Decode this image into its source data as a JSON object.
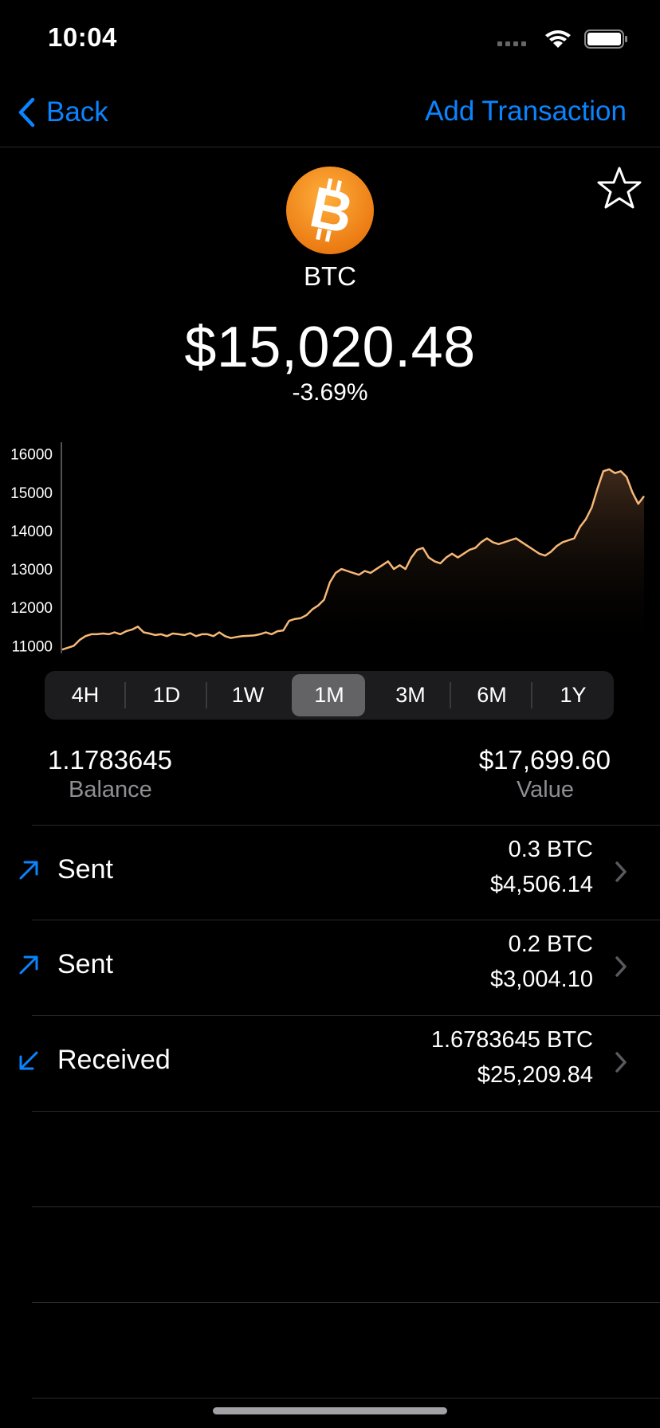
{
  "status_bar": {
    "time": "10:04"
  },
  "nav": {
    "back_label": "Back",
    "add_transaction_label": "Add Transaction"
  },
  "coin": {
    "symbol": "BTC",
    "price": "$15,020.48",
    "change": "-3.69%"
  },
  "colors": {
    "accent": "#0a84ff",
    "chart_line": "#f7b877",
    "coin_orange": "#f7931a"
  },
  "chart_data": {
    "type": "line",
    "title": "",
    "xlabel": "",
    "ylabel": "",
    "ylim": [
      10800,
      16200
    ],
    "yticks": [
      "16000",
      "15000",
      "14000",
      "13000",
      "12000",
      "11000"
    ],
    "series": [
      {
        "values": [
          10900,
          10950,
          11000,
          11150,
          11250,
          11300,
          11300,
          11320,
          11300,
          11350,
          11300,
          11380,
          11420,
          11500,
          11350,
          11320,
          11280,
          11300,
          11250,
          11320,
          11300,
          11280,
          11330,
          11250,
          11300,
          11300,
          11250,
          11350,
          11250,
          11200,
          11230,
          11250,
          11260,
          11270,
          11300,
          11350,
          11300,
          11380,
          11400,
          11650,
          11700,
          11720,
          11800,
          11950,
          12050,
          12200,
          12650,
          12900,
          13000,
          12950,
          12900,
          12850,
          12950,
          12900,
          13000,
          13100,
          13200,
          13000,
          13100,
          13000,
          13300,
          13500,
          13550,
          13300,
          13200,
          13150,
          13300,
          13400,
          13300,
          13400,
          13500,
          13550,
          13700,
          13800,
          13700,
          13650,
          13700,
          13750,
          13800,
          13700,
          13600,
          13500,
          13400,
          13350,
          13450,
          13600,
          13700,
          13750,
          13800,
          14100,
          14300,
          14600,
          15100,
          15550,
          15600,
          15500,
          15550,
          15400,
          15000,
          14700,
          14900
        ]
      }
    ]
  },
  "ranges": {
    "items": [
      "4H",
      "1D",
      "1W",
      "1M",
      "3M",
      "6M",
      "1Y"
    ],
    "selected": "1M"
  },
  "holdings": {
    "balance": "1.1783645",
    "balance_label": "Balance",
    "value": "$17,699.60",
    "value_label": "Value"
  },
  "transactions": [
    {
      "type": "Sent",
      "btc": "0.3 BTC",
      "usd": "$4,506.14",
      "icon": "arrow-up-right-icon"
    },
    {
      "type": "Sent",
      "btc": "0.2 BTC",
      "usd": "$3,004.10",
      "icon": "arrow-up-right-icon"
    },
    {
      "type": "Received",
      "btc": "1.6783645 BTC",
      "usd": "$25,209.84",
      "icon": "arrow-down-left-icon"
    }
  ]
}
